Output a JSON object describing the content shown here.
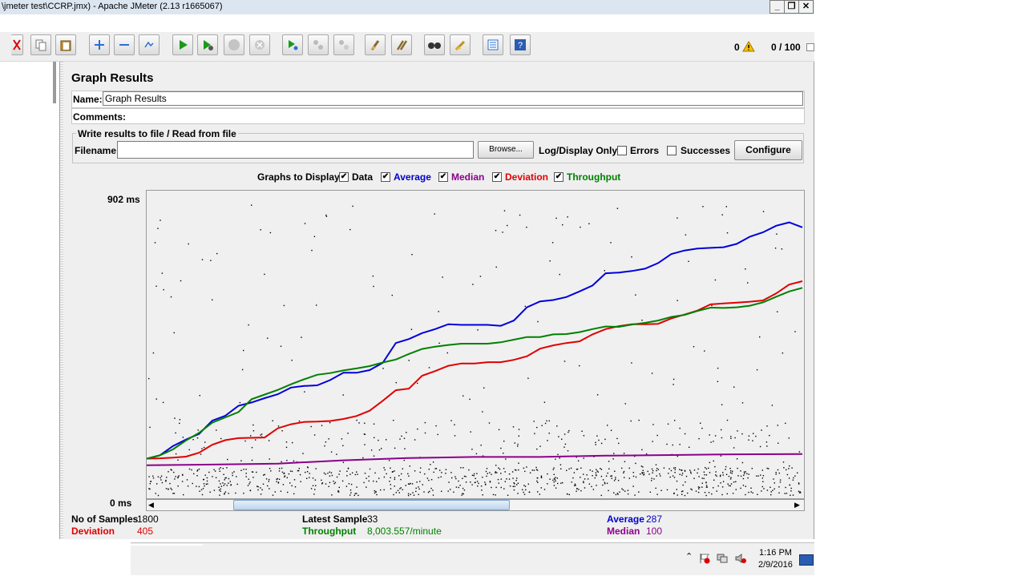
{
  "window": {
    "title": "\\jmeter test\\CCRP.jmx) - Apache JMeter (2.13 r1665067)",
    "controls": [
      "_",
      "❐",
      "✕"
    ]
  },
  "toolbar": {
    "warning_count": "0",
    "thread_count": "0 / 100",
    "icons": [
      "cut-icon",
      "copy-icon",
      "paste-icon",
      "expand-icon",
      "collapse-icon",
      "toggle-icon",
      "start-icon",
      "start-no-timers-icon",
      "stop-icon",
      "shutdown-icon",
      "remote-start-icon",
      "remote-stop-icon",
      "remote-shutdown-icon",
      "clear-icon",
      "clear-all-icon",
      "search-icon",
      "reset-search-icon",
      "function-helper-icon",
      "help-icon"
    ]
  },
  "panel": {
    "title": "Graph Results",
    "name_label": "Name:",
    "name_value": "Graph Results",
    "comments_label": "Comments:",
    "comments_value": "",
    "file_group_title": "Write results to file / Read from file",
    "filename_label": "Filename",
    "filename_value": "",
    "browse_label": "Browse...",
    "log_display_label": "Log/Display Only:",
    "errors_label": "Errors",
    "successes_label": "Successes",
    "configure_label": "Configure",
    "graphs_to_display_label": "Graphs to Display",
    "series_toggles": [
      {
        "label": "Data",
        "checked": true,
        "color": "#000000"
      },
      {
        "label": "Average",
        "checked": true,
        "color": "#0000cc"
      },
      {
        "label": "Median",
        "checked": true,
        "color": "#8b008b"
      },
      {
        "label": "Deviation",
        "checked": true,
        "color": "#e00000"
      },
      {
        "label": "Throughput",
        "checked": true,
        "color": "#008000"
      }
    ]
  },
  "chart_data": {
    "type": "line",
    "y_max_label": "902  ms",
    "y_min_label": "0  ms",
    "ylim": [
      0,
      902
    ],
    "x_samples": 1800,
    "series": [
      {
        "name": "Average",
        "color": "#0000dd",
        "points": [
          [
            0,
            120
          ],
          [
            200,
            130
          ],
          [
            400,
            158
          ],
          [
            600,
            178
          ],
          [
            800,
            195
          ],
          [
            1000,
            235
          ],
          [
            1200,
            250
          ],
          [
            1400,
            280
          ],
          [
            1600,
            290
          ],
          [
            1800,
            303
          ],
          [
            2000,
            315
          ],
          [
            2200,
            335
          ],
          [
            2400,
            340
          ],
          [
            2600,
            342
          ],
          [
            2800,
            358
          ],
          [
            3000,
            380
          ],
          [
            3200,
            380
          ],
          [
            3400,
            388
          ],
          [
            3600,
            410
          ],
          [
            3800,
            470
          ],
          [
            4000,
            482
          ],
          [
            4200,
            500
          ],
          [
            4400,
            512
          ],
          [
            4600,
            527
          ],
          [
            4800,
            525
          ],
          [
            5000,
            525
          ],
          [
            5200,
            525
          ],
          [
            5400,
            522
          ],
          [
            5600,
            538
          ],
          [
            5800,
            578
          ],
          [
            6000,
            596
          ],
          [
            6200,
            600
          ],
          [
            6400,
            609
          ],
          [
            6600,
            626
          ],
          [
            6800,
            644
          ],
          [
            7000,
            681
          ],
          [
            7200,
            683
          ],
          [
            7400,
            688
          ],
          [
            7600,
            695
          ],
          [
            7800,
            712
          ],
          [
            8000,
            739
          ],
          [
            8200,
            750
          ],
          [
            8400,
            756
          ],
          [
            8600,
            758
          ],
          [
            8800,
            760
          ],
          [
            9000,
            770
          ],
          [
            9200,
            792
          ],
          [
            9400,
            805
          ],
          [
            9600,
            825
          ],
          [
            9800,
            835
          ],
          [
            10000,
            820
          ]
        ]
      },
      {
        "name": "Deviation",
        "color": "#e00000",
        "points": [
          [
            0,
            120
          ],
          [
            200,
            121
          ],
          [
            400,
            123
          ],
          [
            600,
            126
          ],
          [
            800,
            138
          ],
          [
            1000,
            162
          ],
          [
            1200,
            176
          ],
          [
            1400,
            182
          ],
          [
            1600,
            183
          ],
          [
            1800,
            184
          ],
          [
            2000,
            212
          ],
          [
            2200,
            224
          ],
          [
            2400,
            231
          ],
          [
            2600,
            232
          ],
          [
            2800,
            234
          ],
          [
            3000,
            240
          ],
          [
            3200,
            249
          ],
          [
            3400,
            265
          ],
          [
            3600,
            295
          ],
          [
            3800,
            327
          ],
          [
            4000,
            332
          ],
          [
            4200,
            371
          ],
          [
            4400,
            385
          ],
          [
            4600,
            401
          ],
          [
            4800,
            408
          ],
          [
            5000,
            408
          ],
          [
            5200,
            412
          ],
          [
            5400,
            412
          ],
          [
            5600,
            419
          ],
          [
            5800,
            430
          ],
          [
            6000,
            453
          ],
          [
            6200,
            463
          ],
          [
            6400,
            470
          ],
          [
            6600,
            475
          ],
          [
            6800,
            496
          ],
          [
            7000,
            512
          ],
          [
            7200,
            521
          ],
          [
            7400,
            527
          ],
          [
            7600,
            527
          ],
          [
            7800,
            528
          ],
          [
            8000,
            544
          ],
          [
            8200,
            556
          ],
          [
            8400,
            568
          ],
          [
            8600,
            587
          ],
          [
            8800,
            590
          ],
          [
            9000,
            592
          ],
          [
            9200,
            595
          ],
          [
            9400,
            599
          ],
          [
            9600,
            620
          ],
          [
            9800,
            647
          ],
          [
            10000,
            657
          ]
        ]
      },
      {
        "name": "Median",
        "color": "#8b008b",
        "points": [
          [
            0,
            100
          ],
          [
            1000,
            102
          ],
          [
            2000,
            105
          ],
          [
            3000,
            115
          ],
          [
            4000,
            122
          ],
          [
            5000,
            125
          ],
          [
            6000,
            125
          ],
          [
            7000,
            129
          ],
          [
            8000,
            131
          ],
          [
            9000,
            133
          ],
          [
            10000,
            134
          ]
        ]
      },
      {
        "name": "Throughput",
        "color": "#008000",
        "points": [
          [
            0,
            120
          ],
          [
            200,
            130
          ],
          [
            400,
            148
          ],
          [
            600,
            175
          ],
          [
            800,
            198
          ],
          [
            1000,
            229
          ],
          [
            1200,
            245
          ],
          [
            1400,
            261
          ],
          [
            1600,
            300
          ],
          [
            1800,
            314
          ],
          [
            2000,
            328
          ],
          [
            2200,
            345
          ],
          [
            2400,
            360
          ],
          [
            2600,
            374
          ],
          [
            2800,
            379
          ],
          [
            3000,
            387
          ],
          [
            3200,
            393
          ],
          [
            3400,
            400
          ],
          [
            3600,
            411
          ],
          [
            3800,
            420
          ],
          [
            4000,
            437
          ],
          [
            4200,
            452
          ],
          [
            4400,
            459
          ],
          [
            4600,
            464
          ],
          [
            4800,
            468
          ],
          [
            5000,
            468
          ],
          [
            5200,
            468
          ],
          [
            5400,
            472
          ],
          [
            5600,
            480
          ],
          [
            5800,
            488
          ],
          [
            6000,
            488
          ],
          [
            6200,
            496
          ],
          [
            6400,
            497
          ],
          [
            6600,
            503
          ],
          [
            6800,
            512
          ],
          [
            7000,
            520
          ],
          [
            7200,
            519
          ],
          [
            7400,
            526
          ],
          [
            7600,
            531
          ],
          [
            7800,
            538
          ],
          [
            8000,
            549
          ],
          [
            8200,
            555
          ],
          [
            8400,
            567
          ],
          [
            8600,
            577
          ],
          [
            8800,
            576
          ],
          [
            9000,
            578
          ],
          [
            9200,
            583
          ],
          [
            9400,
            593
          ],
          [
            9600,
            610
          ],
          [
            9800,
            626
          ],
          [
            10000,
            637
          ]
        ]
      }
    ]
  },
  "stats": {
    "samples_label": "No of Samples",
    "samples_value": "1800",
    "deviation_label": "Deviation",
    "deviation_value": "405",
    "latest_label": "Latest Sample",
    "latest_value": "33",
    "throughput_label": "Throughput",
    "throughput_value": "8,003.557/minute",
    "average_label": "Average",
    "average_value": "287",
    "median_label": "Median",
    "median_value": "100"
  },
  "taskbar": {
    "time": "1:16 PM",
    "date": "2/9/2016"
  }
}
